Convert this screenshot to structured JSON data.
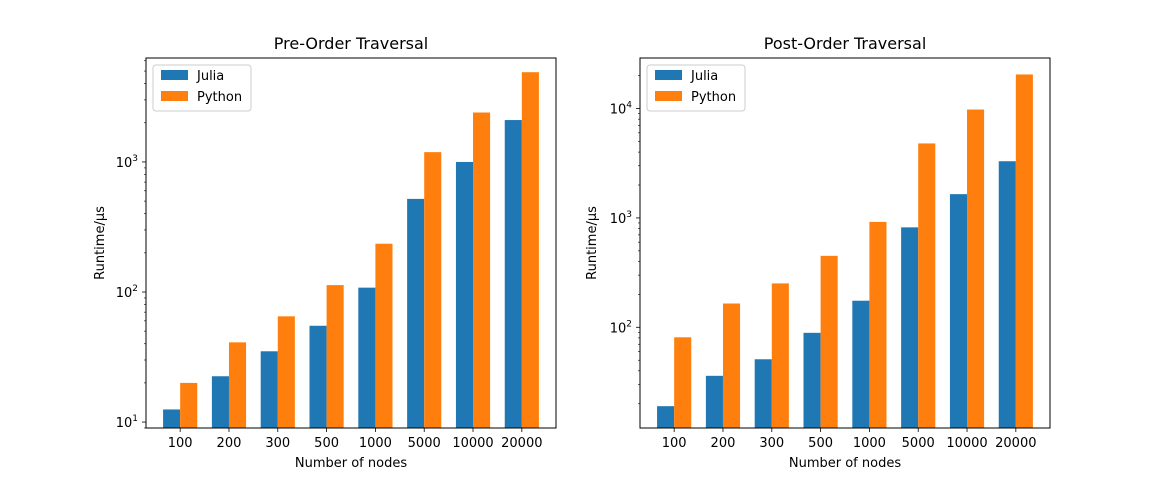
{
  "chart_data": [
    {
      "type": "bar",
      "title": "Pre-Order Traversal",
      "xlabel": "Number of nodes",
      "ylabel": "Runtime/µs",
      "yscale": "log",
      "ylim": [
        9,
        6300
      ],
      "yticks": [
        {
          "value": 10,
          "base": "10",
          "exp": "1"
        },
        {
          "value": 100,
          "base": "10",
          "exp": "2"
        },
        {
          "value": 1000,
          "base": "10",
          "exp": "3"
        }
      ],
      "categories": [
        "100",
        "200",
        "300",
        "500",
        "1000",
        "5000",
        "10000",
        "20000"
      ],
      "series": [
        {
          "name": "Julia",
          "color": "#1f77b4",
          "values": [
            12.5,
            22.5,
            35,
            55,
            108,
            520,
            1000,
            2100
          ]
        },
        {
          "name": "Python",
          "color": "#ff7f0e",
          "values": [
            20,
            41,
            65,
            113,
            235,
            1190,
            2400,
            4900
          ]
        }
      ],
      "legend": "top-left",
      "grid": false
    },
    {
      "type": "bar",
      "title": "Post-Order Traversal",
      "xlabel": "Number of nodes",
      "ylabel": "Runtime/µs",
      "yscale": "log",
      "ylim": [
        12,
        29000
      ],
      "yticks": [
        {
          "value": 100,
          "base": "10",
          "exp": "2"
        },
        {
          "value": 1000,
          "base": "10",
          "exp": "3"
        },
        {
          "value": 10000,
          "base": "10",
          "exp": "4"
        }
      ],
      "categories": [
        "100",
        "200",
        "300",
        "500",
        "1000",
        "5000",
        "10000",
        "20000"
      ],
      "series": [
        {
          "name": "Julia",
          "color": "#1f77b4",
          "values": [
            19,
            36,
            51,
            89,
            175,
            820,
            1650,
            3300
          ]
        },
        {
          "name": "Python",
          "color": "#ff7f0e",
          "values": [
            81,
            165,
            252,
            450,
            920,
            4800,
            9800,
            20500
          ]
        }
      ],
      "legend": "top-left",
      "grid": false
    }
  ]
}
